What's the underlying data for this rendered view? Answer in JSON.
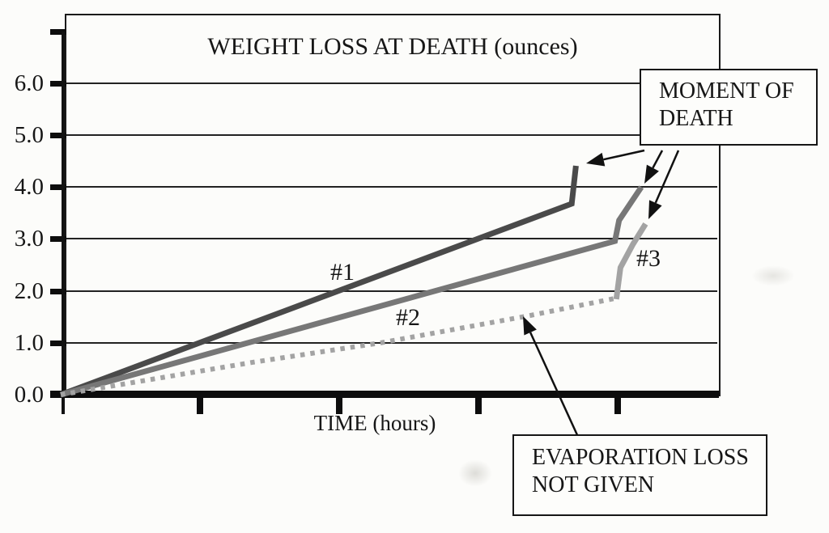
{
  "chart_data": {
    "type": "line",
    "title": "WEIGHT LOSS AT DEATH (ounces)",
    "xlabel": "TIME (hours)",
    "ylabel": "",
    "ylim": [
      0,
      7
    ],
    "grid": "horizontal",
    "legend": "none",
    "x_axis": {
      "tick_positions": [
        1,
        2,
        3,
        4
      ],
      "tick_labels_visible": false
    },
    "y_axis": {
      "ticks": [
        {
          "value": 7,
          "label": "",
          "gridline": false
        },
        {
          "value": 6,
          "label": "6.0",
          "gridline": true
        },
        {
          "value": 5,
          "label": "5.0",
          "gridline": true
        },
        {
          "value": 4,
          "label": "4.0",
          "gridline": true
        },
        {
          "value": 3,
          "label": "3.0",
          "gridline": true
        },
        {
          "value": 2,
          "label": "2.0",
          "gridline": true
        },
        {
          "value": 1,
          "label": "1.0",
          "gridline": true
        },
        {
          "value": 0,
          "label": "0.0",
          "gridline": false
        }
      ]
    },
    "lines": [
      {
        "label": "#1",
        "style": "solid",
        "color": "#4a4a4a",
        "points": [
          [
            0,
            0
          ],
          [
            3.67,
            3.68
          ],
          [
            3.7,
            4.41
          ]
        ]
      },
      {
        "label": "#2",
        "style": "solid",
        "color": "#777777",
        "points": [
          [
            0,
            0
          ],
          [
            3.98,
            2.96
          ],
          [
            4.01,
            3.36
          ],
          [
            4.17,
            4.0
          ]
        ]
      },
      {
        "label": "#3",
        "style": "solid",
        "color": "#a3a3a3",
        "points": [
          [
            3.99,
            1.84
          ],
          [
            4.02,
            2.45
          ],
          [
            4.11,
            2.9
          ],
          [
            4.2,
            3.29
          ]
        ]
      },
      {
        "label": "",
        "style": "dotted",
        "color": "#a3a3a3",
        "points": [
          [
            0,
            0
          ],
          [
            1.37,
            0.62
          ],
          [
            2.3,
            1.0
          ],
          [
            3.34,
            1.51
          ],
          [
            3.97,
            1.85
          ]
        ]
      }
    ],
    "units": {
      "y": "ounces",
      "x": "hours"
    }
  },
  "callouts": {
    "moment_of_death": {
      "lines": [
        "MOMENT OF",
        "DEATH"
      ]
    },
    "evaporation_loss": {
      "lines": [
        "EVAPORATION LOSS",
        "NOT GIVEN"
      ]
    }
  }
}
